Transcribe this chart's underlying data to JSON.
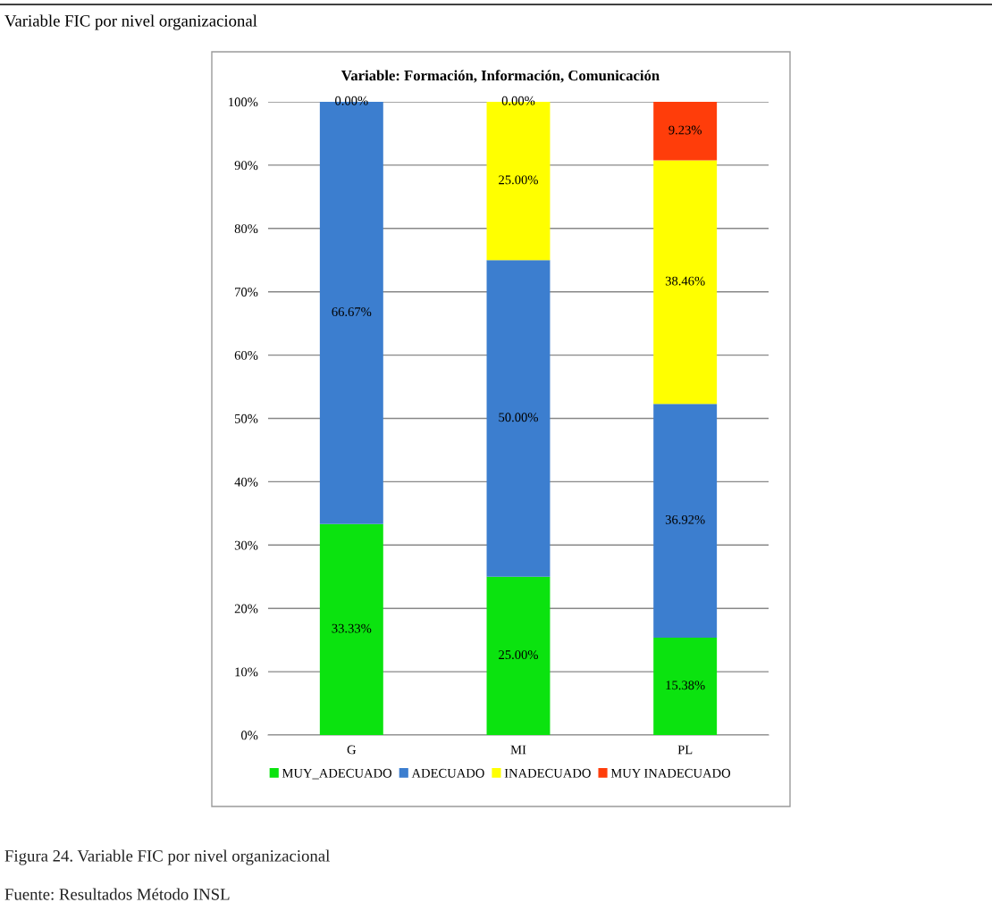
{
  "chart_data": {
    "type": "bar",
    "stacked": true,
    "subtitle": "Variable FIC por nivel organizacional",
    "title": "Variable: Formación, Información, Comunicación",
    "categories": [
      "G",
      "MI",
      "PL"
    ],
    "series": [
      {
        "name": "MUY_ADECUADO",
        "color": "#0be30f",
        "values": [
          33.33,
          25.0,
          15.38
        ],
        "value_labels": [
          "33.33%",
          "25.00%",
          "15.38%"
        ]
      },
      {
        "name": "ADECUADO",
        "color": "#3c7ecf",
        "values": [
          66.67,
          50.0,
          36.92
        ],
        "value_labels": [
          "66.67%",
          "50.00%",
          "36.92%"
        ]
      },
      {
        "name": "INADECUADO",
        "color": "#ffff00",
        "values": [
          0.0,
          25.0,
          38.46
        ],
        "value_labels": [
          null,
          "25.00%",
          "38.46%"
        ]
      },
      {
        "name": "MUY INADECUADO",
        "color": "#ff3d0a",
        "values": [
          0.0,
          0.0,
          9.23
        ],
        "value_labels": [
          "0.00%",
          "0.00%",
          "9.23%"
        ]
      }
    ],
    "ylim": [
      0,
      100
    ],
    "yticks": [
      {
        "value": 0,
        "label": "0%"
      },
      {
        "value": 10,
        "label": "10%"
      },
      {
        "value": 20,
        "label": "20%"
      },
      {
        "value": 30,
        "label": "30%"
      },
      {
        "value": 40,
        "label": "40%"
      },
      {
        "value": 50,
        "label": "50%"
      },
      {
        "value": 60,
        "label": "60%"
      },
      {
        "value": 70,
        "label": "70%"
      },
      {
        "value": 80,
        "label": "80%"
      },
      {
        "value": 90,
        "label": "90%"
      },
      {
        "value": 100,
        "label": "100%"
      }
    ],
    "grid": "y",
    "legend": "bottom",
    "annotations": [
      "Figura 24. Variable FIC por nivel organizacional",
      "Fuente: Resultados Método INSL"
    ]
  }
}
